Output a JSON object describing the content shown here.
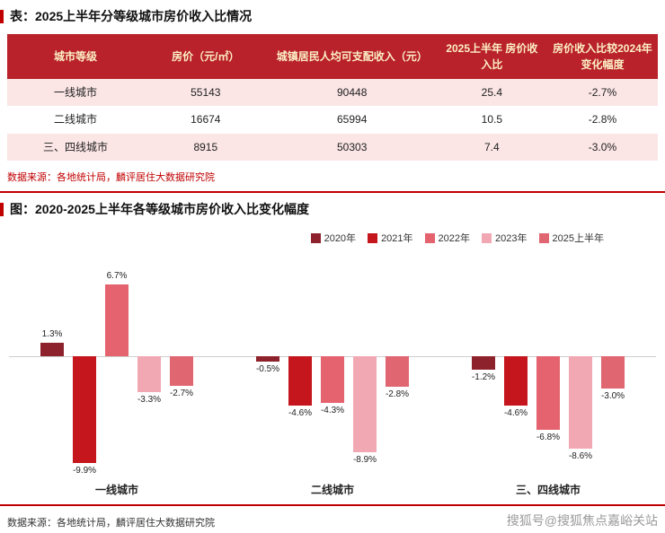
{
  "table_section": {
    "title": "表：2025上半年分等级城市房价收入比情况",
    "source": "数据来源：各地统计局，麟评居住大数据研究院",
    "table": {
      "headers": [
        "城市等级",
        "房价（元/㎡）",
        "城镇居民人均可支配收入（元）",
        "2025上半年 房价收入比",
        "房价收入比较2024年 变化幅度"
      ],
      "rows": [
        [
          "一线城市",
          "55143",
          "90448",
          "25.4",
          "-2.7%"
        ],
        [
          "二线城市",
          "16674",
          "65994",
          "10.5",
          "-2.8%"
        ],
        [
          "三、四线城市",
          "8915",
          "50303",
          "7.4",
          "-3.0%"
        ]
      ]
    }
  },
  "chart_section": {
    "title": "图：2020-2025上半年各等级城市房价收入比变化幅度",
    "source": "数据来源：各地统计局，麟评居住大数据研究院"
  },
  "watermark": "搜狐号@搜狐焦点嘉峪关站",
  "colors": {
    "accent_red": "#C00000",
    "table_header_bg": "#B9222A",
    "table_header_text": "#FCEFC6",
    "row_pink": "#FBE5E5"
  },
  "chart_data": {
    "type": "bar",
    "title": "图：2020-2025上半年各等级城市房价收入比变化幅度",
    "categories": [
      "一线城市",
      "二线城市",
      "三、四线城市"
    ],
    "series": [
      {
        "name": "2020年",
        "color": "#8E222C",
        "values": [
          1.3,
          -0.5,
          -1.2
        ]
      },
      {
        "name": "2021年",
        "color": "#C4161C",
        "values": [
          -9.9,
          -4.6,
          -4.6
        ]
      },
      {
        "name": "2022年",
        "color": "#E4636E",
        "values": [
          6.7,
          -4.3,
          -6.8
        ]
      },
      {
        "name": "2023年",
        "color": "#F2A8B2",
        "values": [
          -3.3,
          -8.9,
          -8.6
        ]
      },
      {
        "name": "2025上半年",
        "color": "#E06671",
        "values": [
          -2.7,
          -2.8,
          -3.0
        ]
      }
    ],
    "value_suffix": "%",
    "ylim": [
      -12,
      9
    ],
    "legend_position": "top",
    "grid": false,
    "zero_line": true
  }
}
